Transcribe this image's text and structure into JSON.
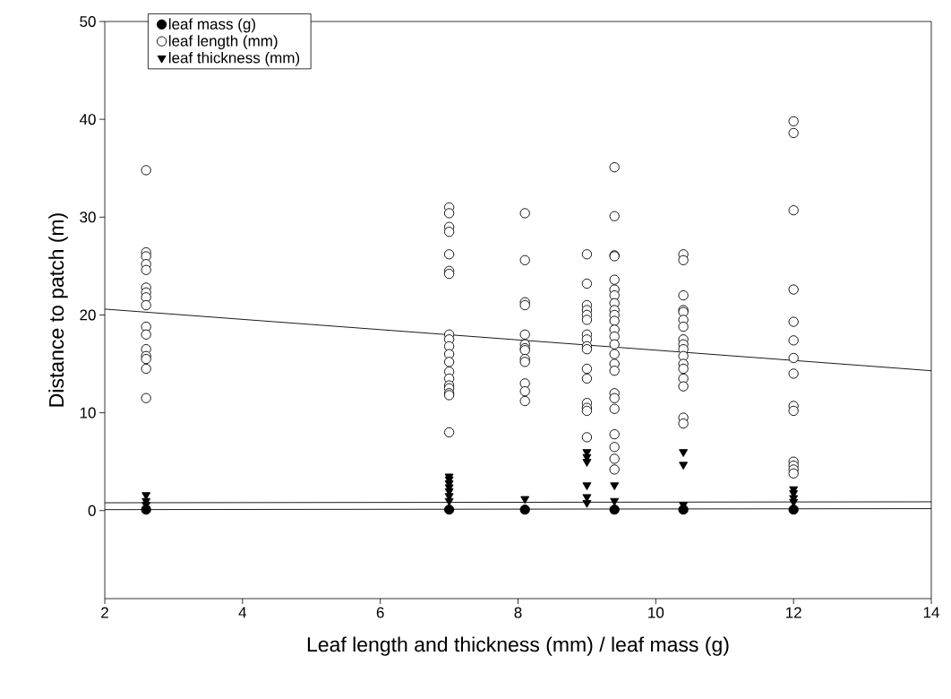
{
  "chart_data": {
    "type": "scatter",
    "xlabel": "Leaf length and thickness (mm) / leaf mass (g)",
    "ylabel": "Distance to patch (m)",
    "xlim": [
      2,
      14
    ],
    "xticks": [
      2,
      4,
      6,
      8,
      10,
      12,
      14
    ],
    "ylim": [
      -9,
      50
    ],
    "yticks": [
      0,
      10,
      20,
      30,
      40,
      50
    ],
    "legend": "top left",
    "grid": false,
    "series": [
      {
        "name": "leaf mass (g)",
        "color": "#000000",
        "marker": "circle",
        "x": [
          2.6,
          7,
          8.1,
          9,
          9.4,
          10.4,
          12
        ],
        "values": [
          0.1,
          0.1,
          0.1,
          null,
          0.1,
          0.1,
          0.1
        ]
      },
      {
        "name": "leaf length (mm)",
        "color": "#ffffff",
        "marker": "circle",
        "x": [
          2.6,
          2.6,
          2.6,
          2.6,
          2.6,
          2.6,
          2.6,
          2.6,
          2.6,
          2.6,
          2.6,
          2.6,
          2.6,
          2.6,
          2.6,
          2.6,
          7,
          7,
          7,
          7,
          7,
          7,
          7,
          7,
          7,
          7,
          7,
          7,
          7,
          7,
          7,
          7,
          7,
          7,
          7,
          8.1,
          8.1,
          8.1,
          8.1,
          8.1,
          8.1,
          8.1,
          8.1,
          8.1,
          8.1,
          8.1,
          8.1,
          8.1,
          9,
          9,
          9,
          9,
          9,
          9,
          9,
          9,
          9,
          9,
          9,
          9,
          9,
          9,
          9,
          9,
          9.4,
          9.4,
          9.4,
          9.4,
          9.4,
          9.4,
          9.4,
          9.4,
          9.4,
          9.4,
          9.4,
          9.4,
          9.4,
          9.4,
          9.4,
          9.4,
          9.4,
          9.4,
          9.4,
          9.4,
          9.4,
          9.4,
          9.4,
          9.4,
          10.4,
          10.4,
          10.4,
          10.4,
          10.4,
          10.4,
          10.4,
          10.4,
          10.4,
          10.4,
          10.4,
          10.4,
          10.4,
          10.4,
          10.4,
          10.4,
          10.4,
          12,
          12,
          12,
          12,
          12,
          12,
          12,
          12,
          12,
          12,
          12,
          12,
          12,
          12
        ],
        "values": [
          34.8,
          26.4,
          26.0,
          25.2,
          24.6,
          22.8,
          22.3,
          21.8,
          21.0,
          18.8,
          18.0,
          16.5,
          15.8,
          15.5,
          14.5,
          11.5,
          31.0,
          30.4,
          29.0,
          28.5,
          26.2,
          24.5,
          24.2,
          18.0,
          17.5,
          16.8,
          16.0,
          15.2,
          14.2,
          13.5,
          12.8,
          12.5,
          12.0,
          11.8,
          8.0,
          30.4,
          25.6,
          21.3,
          21.0,
          18.0,
          17.0,
          16.6,
          16.4,
          15.5,
          15.2,
          13.0,
          12.2,
          11.2,
          26.2,
          23.2,
          21.0,
          20.5,
          20.0,
          19.5,
          18.0,
          17.5,
          16.8,
          16.5,
          14.5,
          13.5,
          11.0,
          10.5,
          10.2,
          7.5,
          35.1,
          30.1,
          26.1,
          26.0,
          23.6,
          22.6,
          22.0,
          21.2,
          20.5,
          20.0,
          19.4,
          18.5,
          17.8,
          17.0,
          16.0,
          15.0,
          14.3,
          12.0,
          11.5,
          10.4,
          7.8,
          6.5,
          5.3,
          4.2,
          26.2,
          25.6,
          22.0,
          20.5,
          20.3,
          19.5,
          18.8,
          17.5,
          17.0,
          16.5,
          15.8,
          15.0,
          14.5,
          13.5,
          12.7,
          9.5,
          8.9,
          39.8,
          38.6,
          30.7,
          22.6,
          19.3,
          17.4,
          15.6,
          14.0,
          10.7,
          10.2,
          5.0,
          4.6,
          4.2,
          3.8
        ]
      },
      {
        "name": "leaf thickness (mm)",
        "color": "#000000",
        "marker": "triangle",
        "x": [
          2.6,
          2.6,
          2.6,
          7,
          7,
          7,
          7,
          7,
          7,
          7,
          8.1,
          9,
          9,
          9,
          9,
          9,
          9,
          9.4,
          9.4,
          10.4,
          10.4,
          10.4,
          12,
          12,
          12,
          12
        ],
        "values": [
          1.6,
          1.0,
          0.6,
          3.5,
          3.2,
          2.8,
          2.4,
          2.0,
          1.5,
          1.0,
          1.2,
          6.0,
          5.5,
          5.0,
          2.6,
          1.4,
          0.8,
          2.6,
          1.0,
          6.0,
          4.7,
          0.6,
          2.2,
          1.8,
          1.3,
          0.9
        ]
      },
      {
        "type": "line",
        "color": "#000000",
        "x": [
          2,
          14
        ],
        "values": [
          20.6,
          14.3
        ]
      },
      {
        "type": "line",
        "color": "#000000",
        "x": [
          2,
          14
        ],
        "values": [
          0.8,
          0.9
        ]
      },
      {
        "type": "line",
        "color": "#000000",
        "x": [
          2,
          14
        ],
        "values": [
          0.1,
          0.2
        ]
      }
    ]
  }
}
